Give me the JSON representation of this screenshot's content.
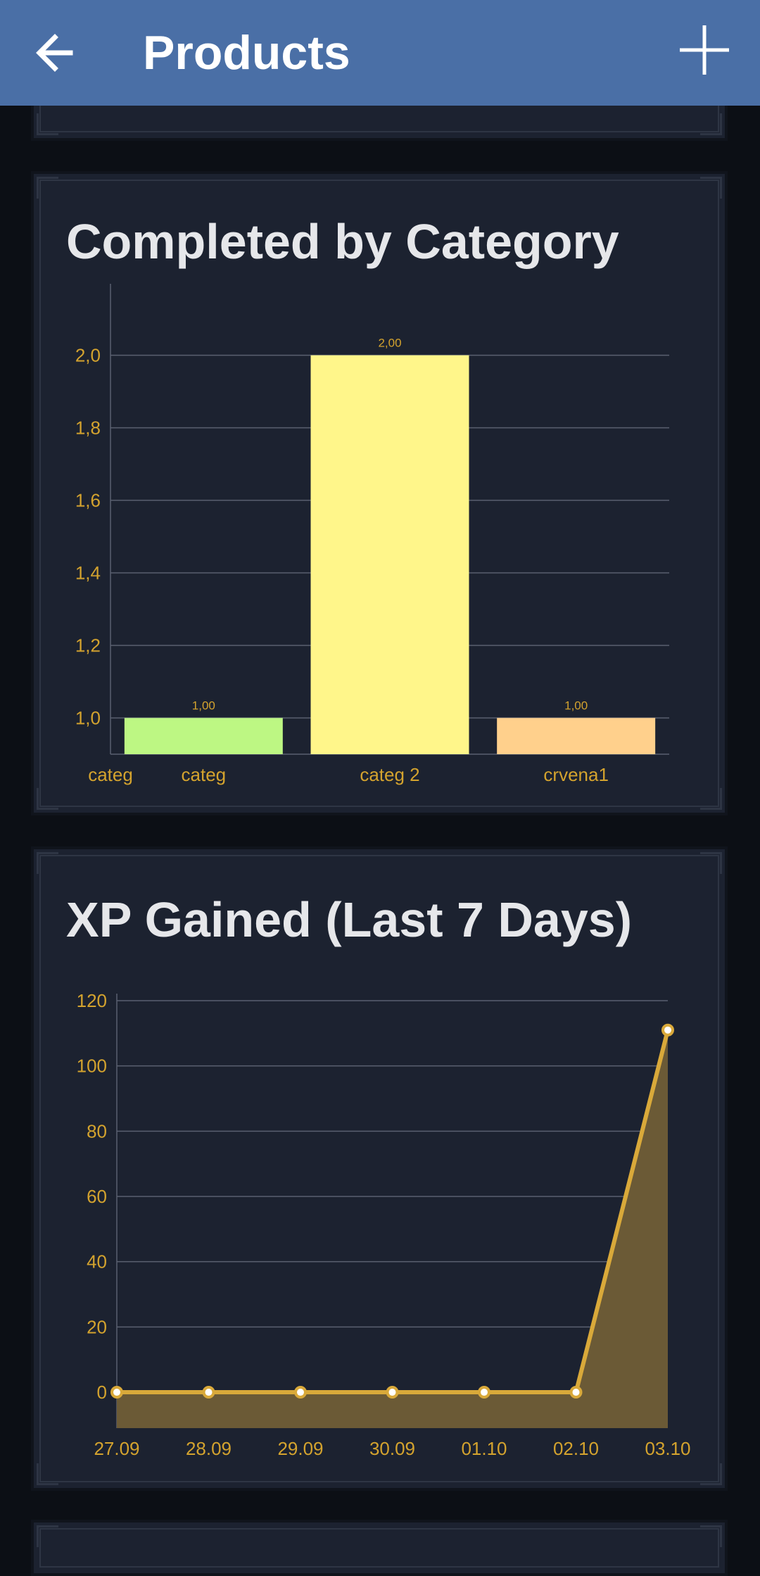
{
  "appbar": {
    "title": "Products",
    "back_icon": "arrow-left-icon",
    "add_icon": "plus-icon",
    "color": "#4a6fa6"
  },
  "cards": [
    {
      "title": "Completed by Category",
      "chart_data": {
        "type": "bar",
        "categories": [
          "categ",
          "categ 2",
          "crvena1"
        ],
        "extra_left_label": "categ",
        "values": [
          1.0,
          2.0,
          1.0
        ],
        "value_labels": [
          "1,00",
          "2,00",
          "1,00"
        ],
        "colors": [
          "#bdf783",
          "#fff68a",
          "#ffd08c"
        ],
        "yticks": [
          "1,0",
          "1,2",
          "1,4",
          "1,6",
          "1,8",
          "2,0"
        ],
        "ytick_values": [
          1.0,
          1.2,
          1.4,
          1.6,
          1.8,
          2.0
        ],
        "ylim": [
          0.9,
          2.1
        ],
        "title": "Completed by Category",
        "grid": true
      }
    },
    {
      "title": "XP Gained (Last 7 Days)",
      "chart_data": {
        "type": "area",
        "x": [
          "27.09",
          "28.09",
          "29.09",
          "30.09",
          "01.10",
          "02.10",
          "03.10"
        ],
        "values": [
          0,
          0,
          0,
          0,
          0,
          0,
          111
        ],
        "yticks": [
          "0",
          "20",
          "40",
          "60",
          "80",
          "100",
          "120"
        ],
        "ytick_values": [
          0,
          20,
          40,
          60,
          80,
          100,
          120
        ],
        "ylim": [
          -11,
          120
        ],
        "line_color": "#d9a93a",
        "fill_color": "#6b5a36",
        "title": "XP Gained (Last 7 Days)",
        "grid": true
      }
    }
  ]
}
